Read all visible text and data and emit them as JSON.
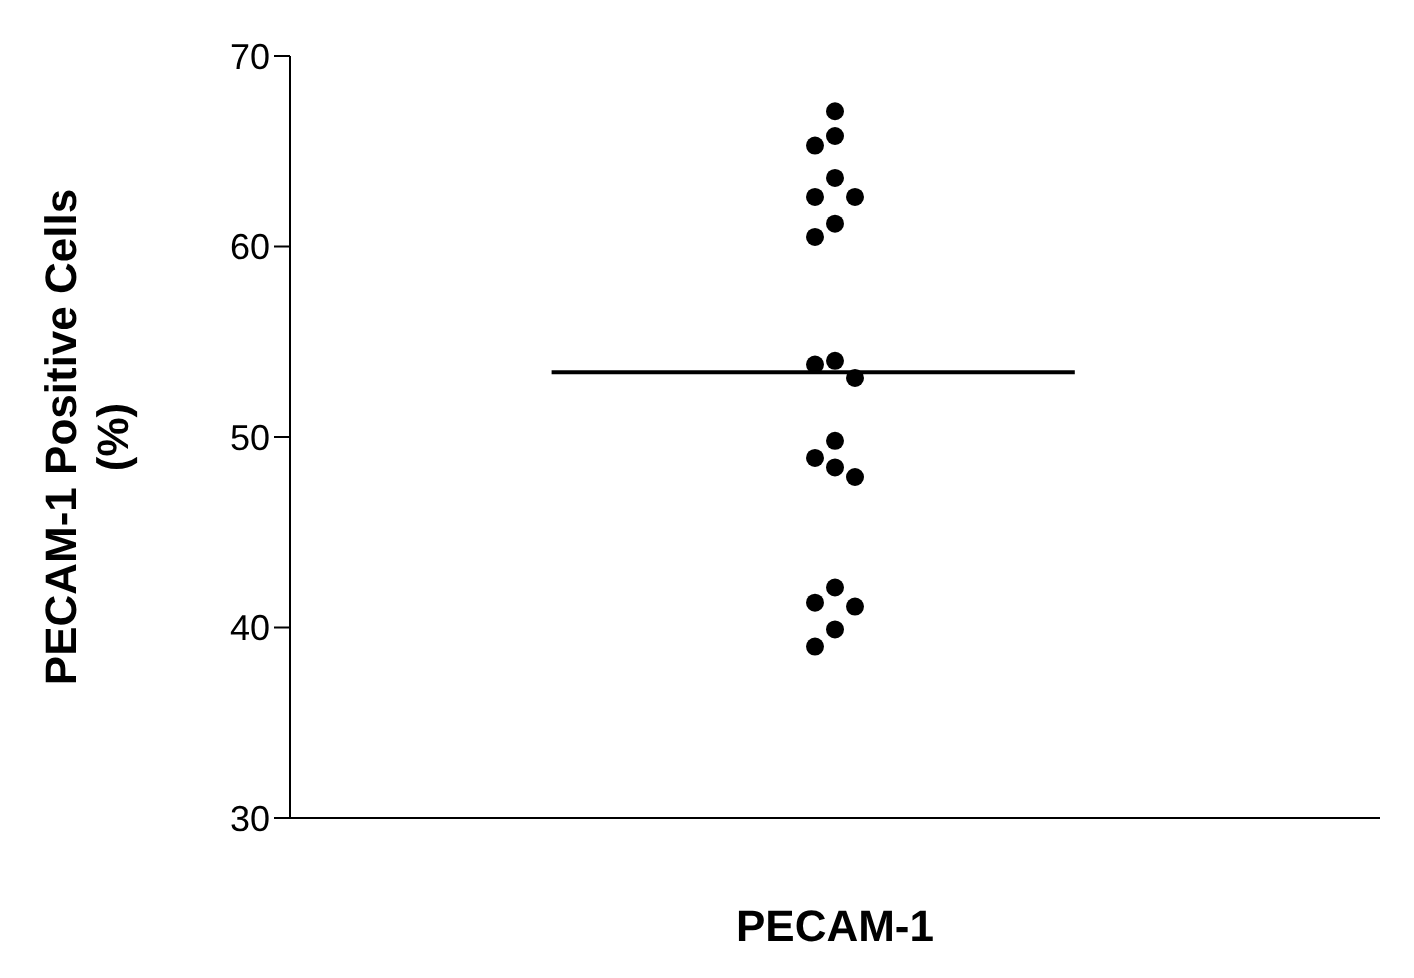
{
  "chart_data": {
    "type": "scatter",
    "ylabel": "PECAM-1 Positive Cells (%)",
    "categories": [
      "PECAM-1"
    ],
    "series": [
      {
        "color": "#000000",
        "x": [
          "PECAM-1",
          "PECAM-1",
          "PECAM-1",
          "PECAM-1",
          "PECAM-1",
          "PECAM-1",
          "PECAM-1",
          "PECAM-1",
          "PECAM-1",
          "PECAM-1",
          "PECAM-1",
          "PECAM-1",
          "PECAM-1",
          "PECAM-1",
          "PECAM-1",
          "PECAM-1",
          "PECAM-1",
          "PECAM-1",
          "PECAM-1",
          "PECAM-1"
        ],
        "values": [
          67.1,
          65.8,
          65.3,
          63.6,
          62.6,
          62.6,
          61.2,
          60.5,
          54.0,
          53.8,
          53.1,
          49.8,
          48.9,
          48.4,
          47.9,
          42.1,
          41.3,
          41.1,
          39.9,
          39.0
        ]
      }
    ],
    "ref_lines": [
      {
        "axis": "y",
        "value": 53.4,
        "color": "#000000"
      }
    ],
    "ylim": [
      30,
      70
    ],
    "yticks": [
      30,
      40,
      50,
      60,
      70
    ],
    "marker": "circle"
  }
}
